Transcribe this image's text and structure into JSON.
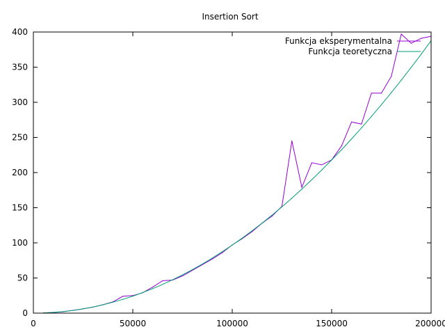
{
  "chart_data": {
    "type": "line",
    "title": "Insertion Sort",
    "xlabel": "",
    "ylabel": "",
    "xlim": [
      0,
      200000
    ],
    "ylim": [
      0,
      400
    ],
    "xticks": [
      0,
      50000,
      100000,
      150000,
      200000
    ],
    "xtick_labels": [
      "0",
      "50000",
      "100000",
      "150000",
      "200000"
    ],
    "yticks": [
      0,
      50,
      100,
      150,
      200,
      250,
      300,
      350,
      400
    ],
    "ytick_labels": [
      "0",
      "50",
      "100",
      "150",
      "200",
      "250",
      "300",
      "350",
      "400"
    ],
    "grid": false,
    "legend_position": "top-right",
    "x": [
      5000,
      10000,
      15000,
      20000,
      25000,
      30000,
      35000,
      40000,
      45000,
      50000,
      55000,
      60000,
      65000,
      70000,
      75000,
      80000,
      85000,
      90000,
      95000,
      100000,
      105000,
      110000,
      115000,
      120000,
      125000,
      130000,
      135000,
      140000,
      145000,
      150000,
      155000,
      160000,
      165000,
      170000,
      175000,
      180000,
      185000,
      190000,
      195000,
      200000
    ],
    "series": [
      {
        "name": "Funkcja eksperymentalna",
        "color": "#9400d3",
        "values": [
          0.2,
          1,
          2,
          4,
          6,
          8.5,
          12,
          16,
          24,
          25,
          29,
          37,
          46,
          47,
          53,
          61,
          69,
          77,
          86,
          97,
          106,
          116,
          128,
          138,
          152,
          245,
          179,
          214,
          211,
          218,
          238,
          272,
          269,
          313,
          313,
          337,
          397,
          384,
          391,
          394
        ]
      },
      {
        "name": "Funkcja teoretyczna",
        "color": "#009e73",
        "values": [
          0.24,
          0.97,
          2.2,
          3.9,
          6.1,
          8.7,
          11.9,
          15.5,
          19.6,
          24.2,
          29.3,
          34.9,
          40.9,
          47.4,
          54.5,
          62,
          69.9,
          78.4,
          87.4,
          96.8,
          106.7,
          117.2,
          128.1,
          139.4,
          151.3,
          163.6,
          176.5,
          189.8,
          203.6,
          217.9,
          232.6,
          247.9,
          263.6,
          279.9,
          296.6,
          313.8,
          331.5,
          349.7,
          368.4,
          387.5
        ]
      }
    ]
  }
}
